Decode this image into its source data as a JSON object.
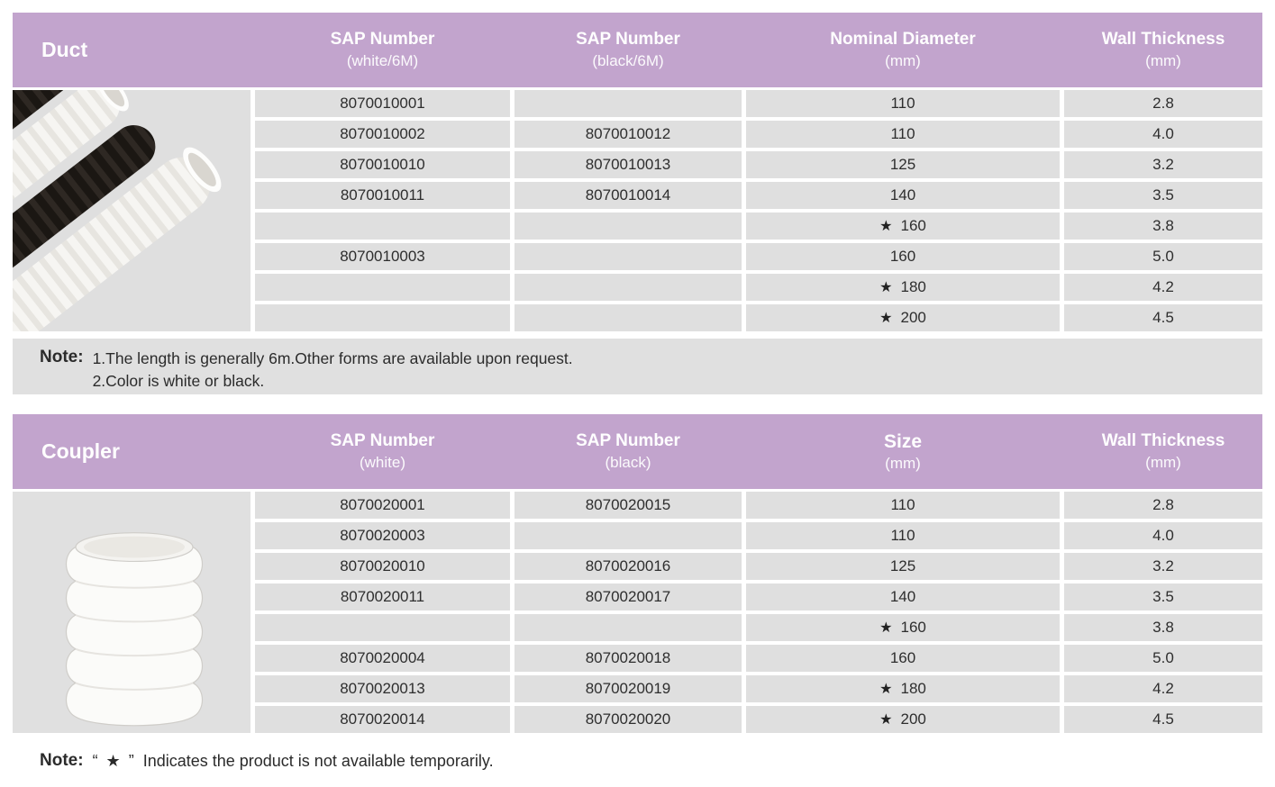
{
  "colors": {
    "header_bg": "#c2a4cd",
    "row_bg": "#dfdfdf",
    "note_bg": "#e0e0e0",
    "header_text": "#ffffff",
    "cell_text": "#2e2e2e"
  },
  "star_symbol": "★",
  "tables": [
    {
      "title": "Duct",
      "image": "duct-pipes-black-and-white-corrugated",
      "columns": [
        {
          "line1": "SAP Number",
          "line2": "(white/6M)"
        },
        {
          "line1": "SAP Number",
          "line2": "(black/6M)"
        },
        {
          "line1": "Nominal Diameter",
          "line2": "(mm)"
        },
        {
          "line1": "Wall Thickness",
          "line2": "(mm)"
        }
      ],
      "rows": [
        {
          "sap_white": "8070010001",
          "sap_black": "",
          "size": "110",
          "star": false,
          "thickness": "2.8"
        },
        {
          "sap_white": "8070010002",
          "sap_black": "8070010012",
          "size": "110",
          "star": false,
          "thickness": "4.0"
        },
        {
          "sap_white": "8070010010",
          "sap_black": "8070010013",
          "size": "125",
          "star": false,
          "thickness": "3.2"
        },
        {
          "sap_white": "8070010011",
          "sap_black": "8070010014",
          "size": "140",
          "star": false,
          "thickness": "3.5"
        },
        {
          "sap_white": "",
          "sap_black": "",
          "size": "160",
          "star": true,
          "thickness": "3.8"
        },
        {
          "sap_white": "8070010003",
          "sap_black": "",
          "size": "160",
          "star": false,
          "thickness": "5.0"
        },
        {
          "sap_white": "",
          "sap_black": "",
          "size": "180",
          "star": true,
          "thickness": "4.2"
        },
        {
          "sap_white": "",
          "sap_black": "",
          "size": "200",
          "star": true,
          "thickness": "4.5"
        }
      ],
      "note_label": "Note:",
      "note_lines": [
        "1.The length is generally 6m.Other forms are available upon request.",
        "2.Color is white or black."
      ]
    },
    {
      "title": "Coupler",
      "image": "white-corrugated-coupler",
      "columns": [
        {
          "line1": "SAP Number",
          "line2": "(white)"
        },
        {
          "line1": "SAP Number",
          "line2": "(black)"
        },
        {
          "line1": "Size",
          "line2": "(mm)"
        },
        {
          "line1": "Wall Thickness",
          "line2": "(mm)"
        }
      ],
      "rows": [
        {
          "sap_white": "8070020001",
          "sap_black": "8070020015",
          "size": "110",
          "star": false,
          "thickness": "2.8"
        },
        {
          "sap_white": "8070020003",
          "sap_black": "",
          "size": "110",
          "star": false,
          "thickness": "4.0"
        },
        {
          "sap_white": "8070020010",
          "sap_black": "8070020016",
          "size": "125",
          "star": false,
          "thickness": "3.2"
        },
        {
          "sap_white": "8070020011",
          "sap_black": "8070020017",
          "size": "140",
          "star": false,
          "thickness": "3.5"
        },
        {
          "sap_white": "",
          "sap_black": "",
          "size": "160",
          "star": true,
          "thickness": "3.8"
        },
        {
          "sap_white": "8070020004",
          "sap_black": "8070020018",
          "size": "160",
          "star": false,
          "thickness": "5.0"
        },
        {
          "sap_white": "8070020013",
          "sap_black": "8070020019",
          "size": "180",
          "star": true,
          "thickness": "4.2"
        },
        {
          "sap_white": "8070020014",
          "sap_black": "8070020020",
          "size": "200",
          "star": true,
          "thickness": "4.5"
        }
      ],
      "note_label": null,
      "note_lines": []
    }
  ],
  "footer_note": {
    "label": "Note:",
    "quoted_star": "“ ★ ”",
    "text": "Indicates the product is not available temporarily."
  }
}
